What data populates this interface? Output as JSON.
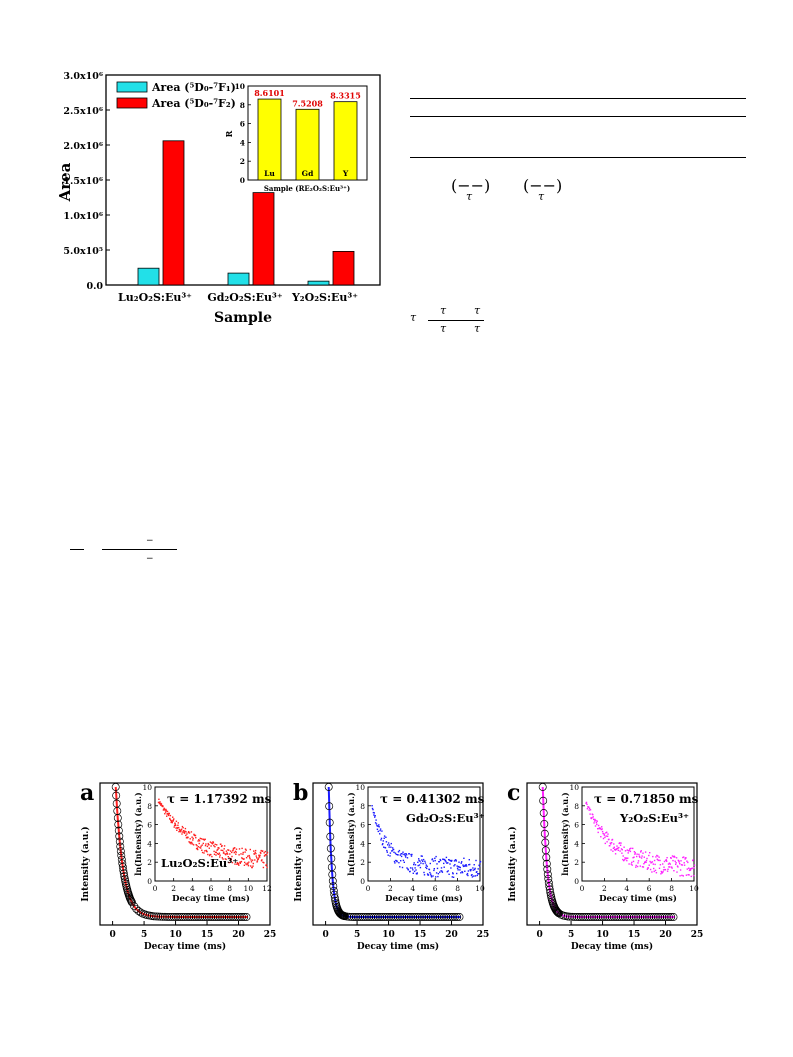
{
  "bar_chart": {
    "ylabel": "Area",
    "xlabel": "Sample",
    "y_ticks": [
      "0.0",
      "5.0x10⁵",
      "1.0x10⁶",
      "1.5x10⁶",
      "2.0x10⁶",
      "2.5x10⁶",
      "3.0x10⁶"
    ],
    "colors": {
      "f1": "#22E0E8",
      "f2": "#FF0000"
    }
  },
  "inset_bar": {
    "colors": {
      "bar": "#FFFF00"
    }
  },
  "decay_panels": [
    {
      "letter": "a",
      "tau": "τ = 1.17392 ms",
      "compound": "Lu₂O₂S:Eu³⁺",
      "color": "#FF2020",
      "inset_xmax": 12,
      "inset_xticks": [
        "0",
        "2",
        "4",
        "6",
        "8",
        "10",
        "12"
      ]
    },
    {
      "letter": "b",
      "tau": "τ = 0.41302 ms",
      "compound": "Gd₂O₂S:Eu³⁺",
      "color": "#1A1AFF",
      "inset_xmax": 10,
      "inset_xticks": [
        "0",
        "2",
        "4",
        "6",
        "8",
        "10"
      ]
    },
    {
      "letter": "c",
      "tau": "τ = 0.71850 ms",
      "compound": "Y₂O₂S:Eu³⁺",
      "color": "#FF20FF",
      "inset_xmax": 10,
      "inset_xticks": [
        "0",
        "2",
        "4",
        "6",
        "8",
        "10"
      ]
    }
  ],
  "decay_axes": {
    "main_xlabel": "Decay time (ms)",
    "main_ylabel": "Intensity (a.u.)",
    "main_xticks": [
      "0",
      "5",
      "10",
      "15",
      "20",
      "25"
    ],
    "inset_xlabel": "Decay time (ms)",
    "inset_ylabel": "ln(Intensity) (a.u.)",
    "inset_yticks": [
      "0",
      "2",
      "4",
      "6",
      "8",
      "10"
    ]
  },
  "equations": {
    "eq1_a": "(−−)",
    "eq1_a_den": "τ",
    "eq1_b": "(−−)",
    "eq1_b_den": "τ",
    "eq2_lhs": "τ",
    "eq2_n1": "τ",
    "eq2_n2": "τ",
    "eq2_d1": "τ",
    "eq2_d2": "τ",
    "eq3_top": "−",
    "eq3_bot": "−"
  },
  "chart_data": [
    {
      "type": "bar",
      "categories": [
        "Lu₂O₂S:Eu³⁺",
        "Gd₂O₂S:Eu³⁺",
        "Y₂O₂S:Eu³⁺"
      ],
      "series": [
        {
          "name": "Area (⁵D₀-⁷F₁)",
          "values": [
            240000,
            170000,
            55000
          ]
        },
        {
          "name": "Area (⁵D₀-⁷F₂)",
          "values": [
            2060000,
            1320000,
            480000
          ]
        }
      ],
      "ylabel": "Area",
      "xlabel": "Sample",
      "ylim": [
        0,
        3000000
      ],
      "legend": "top-left"
    },
    {
      "type": "bar",
      "categories": [
        "Lu",
        "Gd",
        "Y"
      ],
      "values": [
        8.6101,
        7.5208,
        8.3315
      ],
      "data_labels": [
        "8.6101",
        "7.5208",
        "8.3315"
      ],
      "ylabel": "R",
      "xlabel": "Sample (RE₂O₂S:Eu³⁺)",
      "ylim": [
        0,
        10
      ],
      "y_ticks": [
        0,
        2,
        4,
        6,
        8,
        10
      ]
    },
    {
      "type": "scatter",
      "panel": "a",
      "xlabel": "Decay time (ms)",
      "ylabel": "Intensity (a.u.)",
      "xlim": [
        -2,
        25
      ],
      "tau_ms": 1.17392,
      "inset": {
        "xlabel": "Decay time (ms)",
        "ylabel": "ln(Intensity) (a.u.)",
        "xlim": [
          0,
          12
        ],
        "ylim": [
          0,
          10
        ],
        "y_start": 9.2,
        "y_floor": 2.0
      }
    },
    {
      "type": "scatter",
      "panel": "b",
      "xlabel": "Decay time (ms)",
      "ylabel": "Intensity (a.u.)",
      "xlim": [
        -2,
        25
      ],
      "tau_ms": 0.41302,
      "inset": {
        "xlabel": "Decay time (ms)",
        "ylabel": "ln(Intensity) (a.u.)",
        "xlim": [
          0,
          10
        ],
        "ylim": [
          0,
          10
        ],
        "y_start": 9.5,
        "y_floor": 1.5
      }
    },
    {
      "type": "scatter",
      "panel": "c",
      "xlabel": "Decay time (ms)",
      "ylabel": "Intensity (a.u.)",
      "xlim": [
        -2,
        25
      ],
      "tau_ms": 0.7185,
      "inset": {
        "xlabel": "Decay time (ms)",
        "ylabel": "ln(Intensity) (a.u.)",
        "xlim": [
          0,
          10
        ],
        "ylim": [
          0,
          10
        ],
        "y_start": 9.3,
        "y_floor": 1.5
      }
    }
  ]
}
